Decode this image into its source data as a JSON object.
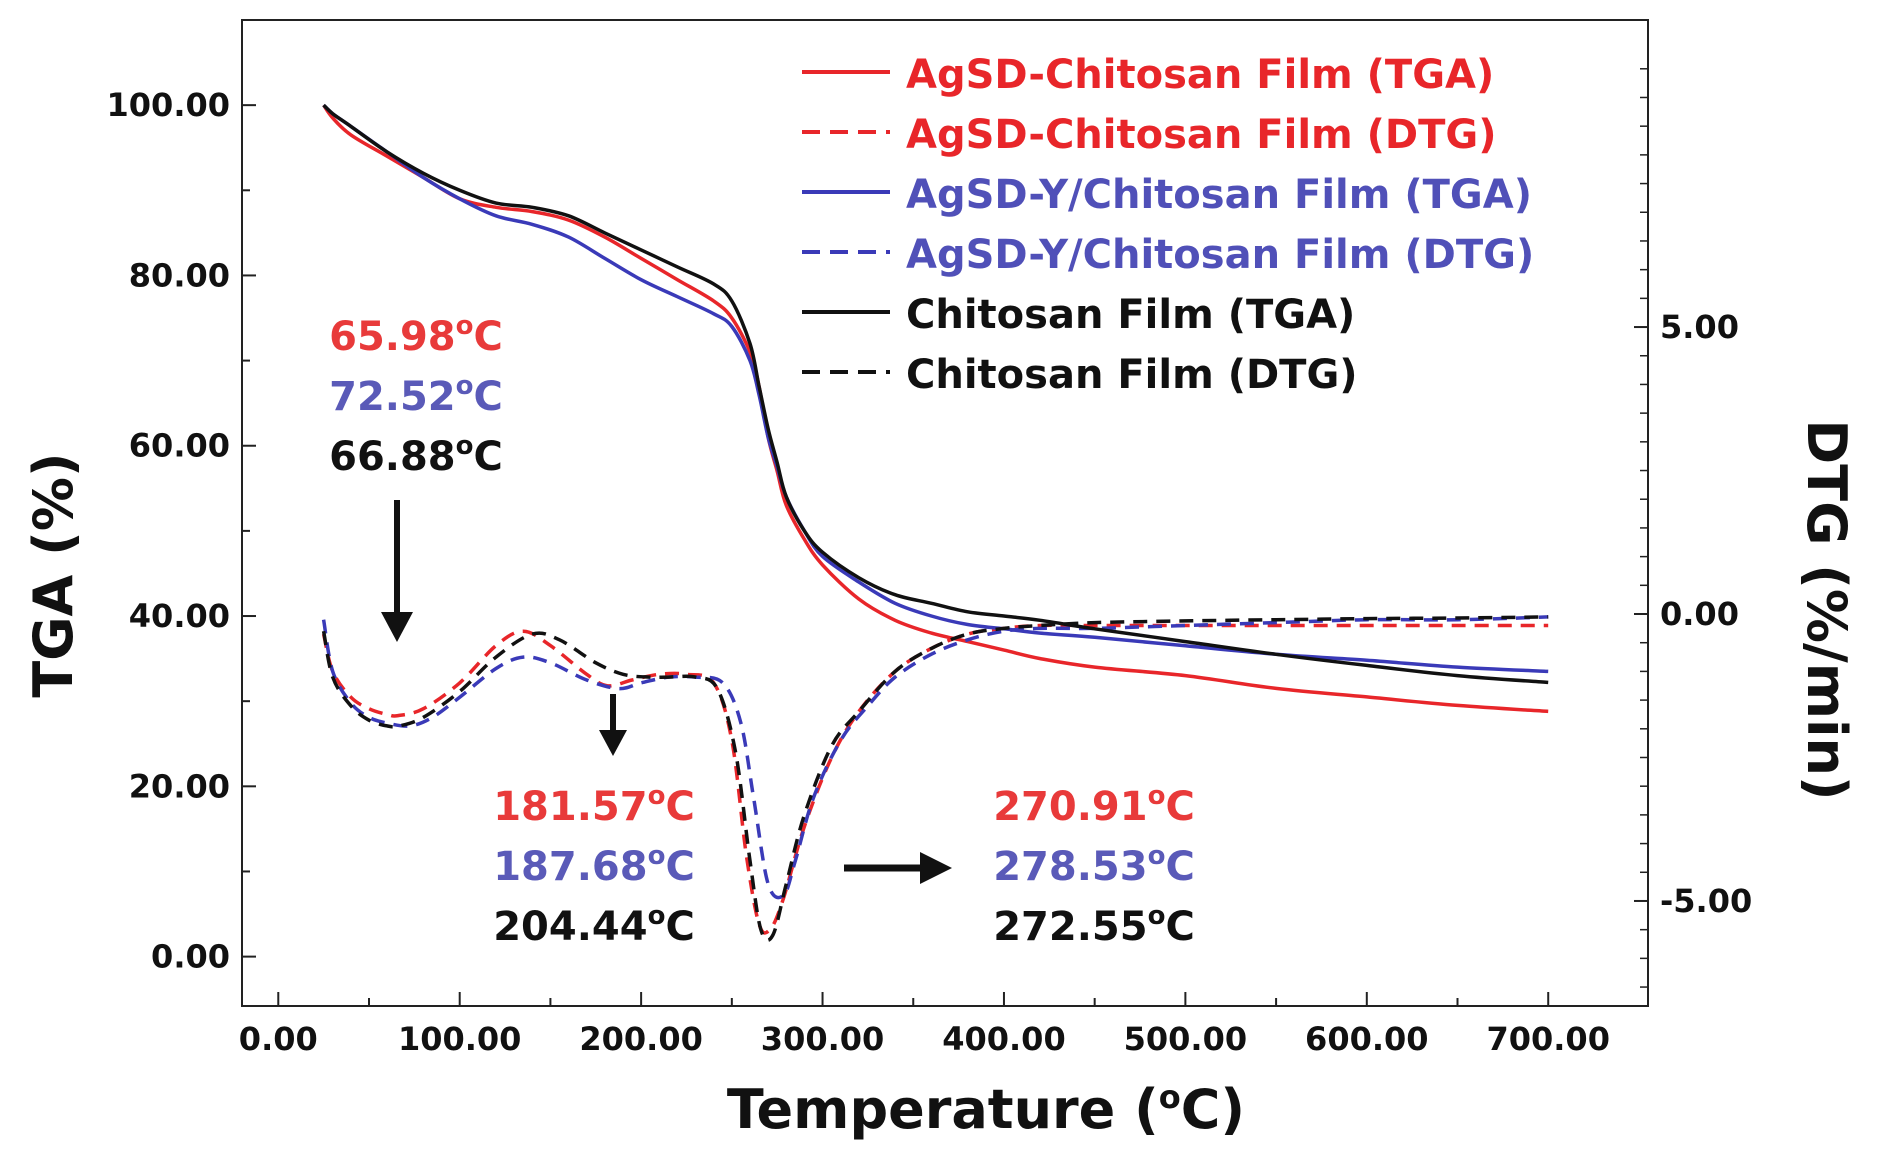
{
  "chart_data": {
    "type": "line",
    "title": "",
    "xlabel": "Temperature (",
    "xlabel_sup": "o",
    "xlabel_unit": "C)",
    "ylabel": "TGA (%)",
    "y2label": "DTG (%/min)",
    "xlim": [
      -20,
      755
    ],
    "ylim": [
      -5.8,
      110
    ],
    "y2lim": [
      -6.83,
      10.35
    ],
    "x_ticks": [
      {
        "value": 0,
        "label": "0.00"
      },
      {
        "value": 100,
        "label": "100.00"
      },
      {
        "value": 200,
        "label": "200.00"
      },
      {
        "value": 300,
        "label": "300.00"
      },
      {
        "value": 400,
        "label": "400.00"
      },
      {
        "value": 500,
        "label": "500.00"
      },
      {
        "value": 600,
        "label": "600.00"
      },
      {
        "value": 700,
        "label": "700.00"
      }
    ],
    "y_ticks": [
      {
        "value": 0,
        "label": "0.00"
      },
      {
        "value": 20,
        "label": "20.00"
      },
      {
        "value": 40,
        "label": "40.00"
      },
      {
        "value": 60,
        "label": "60.00"
      },
      {
        "value": 80,
        "label": "80.00"
      },
      {
        "value": 100,
        "label": "100.00"
      }
    ],
    "y2_ticks": [
      {
        "value": 5,
        "label": "5.00"
      },
      {
        "value": 0,
        "label": "0.00"
      },
      {
        "value": -5,
        "label": "-5.00"
      }
    ],
    "colors": {
      "red": "#e8262a",
      "blue": "#3a3ab8",
      "black": "#111111",
      "red_text": "#e83a3a",
      "blue_text": "#5a5ab8"
    },
    "series": [
      {
        "name": "AgSD-Chitosan Film (TGA)",
        "axis": "left",
        "style": "solid",
        "color": "#e8262a",
        "x": [
          25,
          30,
          40,
          60,
          80,
          100,
          120,
          140,
          160,
          180,
          200,
          220,
          240,
          250,
          260,
          265,
          270,
          275,
          280,
          290,
          300,
          320,
          340,
          360,
          380,
          400,
          420,
          450,
          500,
          550,
          600,
          650,
          700
        ],
        "y": [
          100,
          98.5,
          96.5,
          94,
          91.5,
          89,
          88,
          87.5,
          86.5,
          84.5,
          82,
          79.5,
          77,
          75,
          71,
          67,
          61,
          57,
          53,
          49,
          46,
          42,
          39.5,
          38,
          37,
          36,
          35,
          34,
          33,
          31.5,
          30.5,
          29.5,
          28.8
        ]
      },
      {
        "name": "AgSD-Chitosan Film (DTG)",
        "axis": "right",
        "style": "dashed",
        "color": "#e8262a",
        "x": [
          25,
          30,
          40,
          50,
          60,
          66,
          80,
          100,
          120,
          135,
          150,
          170,
          181.57,
          195,
          210,
          225,
          240,
          250,
          258,
          265,
          270.91,
          278,
          290,
          305,
          320,
          340,
          360,
          380,
          400,
          420,
          450,
          500,
          550,
          600,
          650,
          700
        ],
        "y": [
          -0.35,
          -1.0,
          -1.45,
          -1.65,
          -1.75,
          -1.77,
          -1.65,
          -1.2,
          -0.55,
          -0.3,
          -0.55,
          -1.05,
          -1.25,
          -1.15,
          -1.05,
          -1.05,
          -1.2,
          -2.2,
          -4.2,
          -5.4,
          -5.5,
          -5.0,
          -3.7,
          -2.5,
          -1.7,
          -1.0,
          -0.6,
          -0.35,
          -0.25,
          -0.2,
          -0.2,
          -0.2,
          -0.2,
          -0.2,
          -0.2,
          -0.2
        ]
      },
      {
        "name": "AgSD-Y/Chitosan Film (TGA)",
        "axis": "left",
        "style": "solid",
        "color": "#3a3ab8",
        "x": [
          25,
          30,
          40,
          60,
          80,
          100,
          120,
          140,
          160,
          180,
          200,
          220,
          240,
          250,
          260,
          265,
          270,
          275,
          280,
          290,
          300,
          320,
          340,
          360,
          380,
          400,
          420,
          450,
          500,
          550,
          600,
          650,
          700
        ],
        "y": [
          100,
          99,
          97.5,
          94.5,
          91.5,
          89,
          87,
          86,
          84.5,
          82,
          79.5,
          77.5,
          75.5,
          74,
          70,
          66,
          61,
          57.5,
          54,
          50,
          47,
          44,
          41.5,
          40,
          39,
          38.5,
          38,
          37.5,
          36.5,
          35.5,
          34.8,
          34,
          33.5
        ]
      },
      {
        "name": "AgSD-Y/Chitosan Film (DTG)",
        "axis": "right",
        "style": "dashed",
        "color": "#3a3ab8",
        "x": [
          25,
          30,
          40,
          50,
          60,
          72.52,
          85,
          100,
          120,
          135,
          150,
          170,
          187.68,
          200,
          215,
          230,
          245,
          255,
          262,
          270,
          278.53,
          285,
          295,
          310,
          325,
          340,
          360,
          380,
          400,
          420,
          450,
          500,
          550,
          600,
          650,
          700
        ],
        "y": [
          -0.1,
          -1.0,
          -1.55,
          -1.8,
          -1.9,
          -1.95,
          -1.8,
          -1.45,
          -0.95,
          -0.75,
          -0.85,
          -1.15,
          -1.3,
          -1.2,
          -1.1,
          -1.1,
          -1.2,
          -1.9,
          -3.2,
          -4.7,
          -4.9,
          -4.3,
          -3.2,
          -2.2,
          -1.6,
          -1.1,
          -0.7,
          -0.45,
          -0.3,
          -0.25,
          -0.25,
          -0.2,
          -0.15,
          -0.1,
          -0.1,
          -0.05
        ]
      },
      {
        "name": "Chitosan Film (TGA)",
        "axis": "left",
        "style": "solid",
        "color": "#111111",
        "x": [
          25,
          30,
          40,
          60,
          80,
          100,
          120,
          140,
          160,
          180,
          200,
          220,
          240,
          250,
          260,
          265,
          270,
          275,
          280,
          290,
          300,
          320,
          340,
          360,
          380,
          400,
          420,
          450,
          500,
          550,
          600,
          650,
          700
        ],
        "y": [
          100,
          99,
          97.5,
          94.5,
          92,
          90,
          88.5,
          88,
          87,
          85,
          83,
          81,
          79,
          77,
          72,
          67,
          62,
          58,
          54,
          50,
          47.5,
          44.5,
          42.5,
          41.5,
          40.5,
          40,
          39.5,
          38.5,
          37,
          35.5,
          34.2,
          33,
          32.2
        ]
      },
      {
        "name": "Chitosan Film (DTG)",
        "axis": "right",
        "style": "dashed",
        "color": "#111111",
        "x": [
          25,
          30,
          40,
          50,
          60,
          66.88,
          80,
          100,
          120,
          140,
          155,
          175,
          190,
          204.44,
          215,
          230,
          242,
          252,
          260,
          266,
          272.55,
          280,
          290,
          305,
          320,
          340,
          360,
          380,
          400,
          420,
          450,
          500,
          550,
          600,
          650,
          700
        ],
        "y": [
          -0.3,
          -1.1,
          -1.6,
          -1.85,
          -1.95,
          -1.95,
          -1.8,
          -1.35,
          -0.75,
          -0.35,
          -0.45,
          -0.85,
          -1.05,
          -1.1,
          -1.1,
          -1.1,
          -1.3,
          -2.4,
          -4.3,
          -5.5,
          -5.6,
          -4.7,
          -3.5,
          -2.3,
          -1.7,
          -1.0,
          -0.6,
          -0.35,
          -0.25,
          -0.2,
          -0.15,
          -0.12,
          -0.1,
          -0.08,
          -0.07,
          -0.05
        ]
      }
    ],
    "annotations": {
      "peak1": {
        "red": "65.98",
        "blue": "72.52",
        "black": "66.88"
      },
      "peak2": {
        "red": "181.57",
        "blue": "187.68",
        "black": "204.44"
      },
      "peak3": {
        "red": "270.91",
        "blue": "278.53",
        "black": "272.55"
      },
      "unit_sup": "o",
      "unit": "C"
    }
  }
}
